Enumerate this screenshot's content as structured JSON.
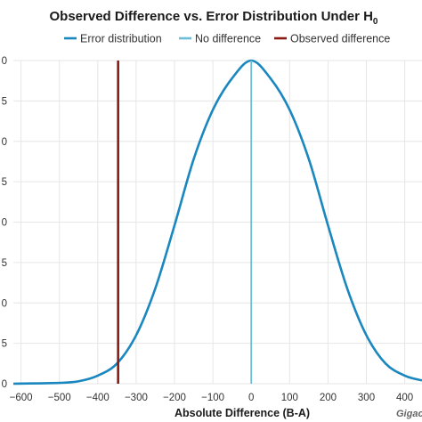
{
  "chart_data": {
    "type": "line",
    "title": "Observed Difference vs. Error Distribution Under H",
    "title_subscript": "0",
    "xlabel": "Absolute Difference (B-A)",
    "ylabel": "",
    "xlim": [
      -620,
      445
    ],
    "ylim": [
      0,
      0.004
    ],
    "x_ticks": [
      -600,
      -500,
      -400,
      -300,
      -200,
      -100,
      0,
      100,
      200,
      300,
      400
    ],
    "x_tick_labels": [
      "−600",
      "−500",
      "−400",
      "−300",
      "−200",
      "−100",
      "0",
      "100",
      "200",
      "300",
      "400"
    ],
    "y_tick_count": 9,
    "y_tick_labels_visible": [
      " 0",
      "5",
      "0",
      "5",
      "0",
      "5",
      "0",
      "5",
      "0"
    ],
    "grid": true,
    "legend_position": "top",
    "credit": "Gigac",
    "series": [
      {
        "name": "Error distribution",
        "color": "#1a87bf",
        "points": [
          [
            -620,
            0.0
          ],
          [
            -500,
            1e-05
          ],
          [
            -450,
            3e-05
          ],
          [
            -400,
            0.0001
          ],
          [
            -350,
            0.00025
          ],
          [
            -300,
            0.0006
          ],
          [
            -250,
            0.00118
          ],
          [
            -200,
            0.00196
          ],
          [
            -150,
            0.00278
          ],
          [
            -100,
            0.00339
          ],
          [
            -50,
            0.00378
          ],
          [
            0,
            0.004
          ],
          [
            50,
            0.00378
          ],
          [
            100,
            0.00339
          ],
          [
            150,
            0.00278
          ],
          [
            200,
            0.00196
          ],
          [
            250,
            0.00118
          ],
          [
            300,
            0.0006
          ],
          [
            350,
            0.00025
          ],
          [
            400,
            0.0001
          ],
          [
            445,
            4e-05
          ]
        ]
      },
      {
        "name": "No difference",
        "color": "#6cbdd6",
        "x": 0
      },
      {
        "name": "Observed difference",
        "color": "#8b1a13",
        "x": -347
      }
    ]
  }
}
